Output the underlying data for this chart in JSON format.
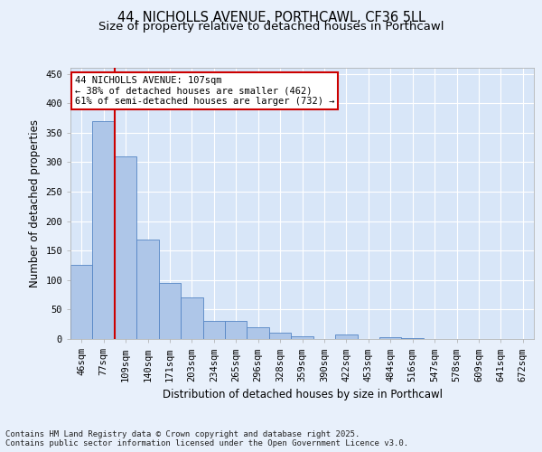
{
  "title_line1": "44, NICHOLLS AVENUE, PORTHCAWL, CF36 5LL",
  "title_line2": "Size of property relative to detached houses in Porthcawl",
  "xlabel": "Distribution of detached houses by size in Porthcawl",
  "ylabel": "Number of detached properties",
  "categories": [
    "46sqm",
    "77sqm",
    "109sqm",
    "140sqm",
    "171sqm",
    "203sqm",
    "234sqm",
    "265sqm",
    "296sqm",
    "328sqm",
    "359sqm",
    "390sqm",
    "422sqm",
    "453sqm",
    "484sqm",
    "516sqm",
    "547sqm",
    "578sqm",
    "609sqm",
    "641sqm",
    "672sqm"
  ],
  "values": [
    125,
    370,
    310,
    168,
    95,
    70,
    30,
    30,
    20,
    10,
    5,
    0,
    8,
    0,
    3,
    2,
    0,
    0,
    0,
    0,
    0
  ],
  "bar_color": "#aec6e8",
  "bar_edge_color": "#5585c5",
  "annotation_text": "44 NICHOLLS AVENUE: 107sqm\n← 38% of detached houses are smaller (462)\n61% of semi-detached houses are larger (732) →",
  "annotation_box_color": "#ffffff",
  "annotation_box_edge_color": "#cc0000",
  "vline_color": "#cc0000",
  "ylim": [
    0,
    460
  ],
  "yticks": [
    0,
    50,
    100,
    150,
    200,
    250,
    300,
    350,
    400,
    450
  ],
  "footer_text": "Contains HM Land Registry data © Crown copyright and database right 2025.\nContains public sector information licensed under the Open Government Licence v3.0.",
  "bg_color": "#e8f0fb",
  "plot_bg_color": "#d8e6f8",
  "grid_color": "#ffffff",
  "title_fontsize": 10.5,
  "subtitle_fontsize": 9.5,
  "label_fontsize": 8.5,
  "tick_fontsize": 7.5,
  "footer_fontsize": 6.5
}
